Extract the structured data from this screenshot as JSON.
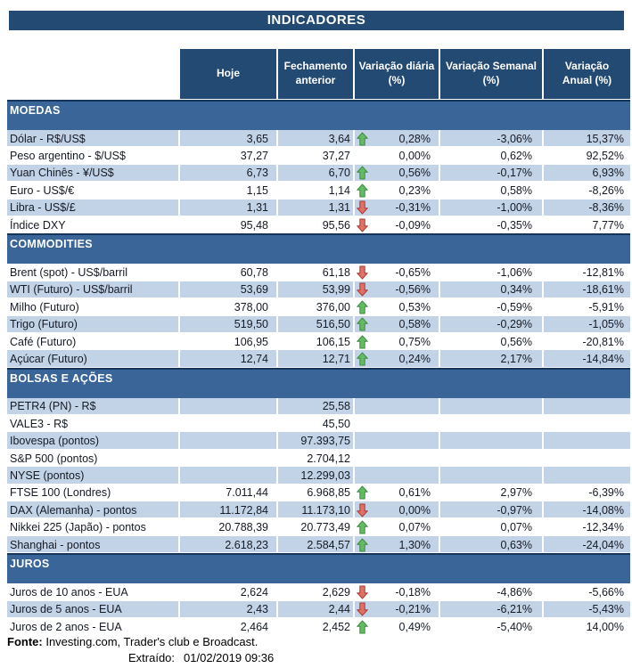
{
  "title": "INDICADORES",
  "columns": [
    "Hoje",
    "Fechamento\nanterior",
    "Variação diária\n(%)",
    "Variação Semanal\n(%)",
    "Variação\nAnual (%)"
  ],
  "colors": {
    "header_navy": "#234A72",
    "section_blue": "#3A6598",
    "section_top_border": "#16355A",
    "row_shaded": "#C3D3E7",
    "arrow_up_fill": "#63BB63",
    "arrow_up_border": "#3D8B3F",
    "arrow_down_fill": "#DF7165",
    "arrow_down_border": "#A63B32"
  },
  "sections": [
    {
      "name": "MOEDAS",
      "first_row_shaded": true,
      "rows": [
        {
          "label": "Dólar - R$/US$",
          "hoje": "3,65",
          "fechamento": "3,64",
          "arrow": "up",
          "diaria": "0,28%",
          "semanal": "-3,06%",
          "anual": "15,37%"
        },
        {
          "label": "Peso argentino - $/US$",
          "hoje": "37,27",
          "fechamento": "37,27",
          "arrow": "",
          "diaria": "0,00%",
          "semanal": "0,62%",
          "anual": "92,52%"
        },
        {
          "label": "Yuan Chinês - ¥/US$",
          "hoje": "6,73",
          "fechamento": "6,70",
          "arrow": "up",
          "diaria": "0,56%",
          "semanal": "-0,17%",
          "anual": "6,93%"
        },
        {
          "label": "Euro - US$/€",
          "hoje": "1,15",
          "fechamento": "1,14",
          "arrow": "up",
          "diaria": "0,23%",
          "semanal": "0,58%",
          "anual": "-8,26%"
        },
        {
          "label": "Libra - US$/£",
          "hoje": "1,31",
          "fechamento": "1,31",
          "arrow": "down",
          "diaria": "-0,31%",
          "semanal": "-1,00%",
          "anual": "-8,36%"
        },
        {
          "label": "Índice DXY",
          "hoje": "95,48",
          "fechamento": "95,56",
          "arrow": "down",
          "diaria": "-0,09%",
          "semanal": "-0,35%",
          "anual": "7,77%"
        }
      ]
    },
    {
      "name": "COMMODITIES",
      "first_row_shaded": false,
      "rows": [
        {
          "label": "Brent (spot) - US$/barril",
          "hoje": "60,78",
          "fechamento": "61,18",
          "arrow": "down",
          "diaria": "-0,65%",
          "semanal": "-1,06%",
          "anual": "-12,81%"
        },
        {
          "label": "WTI (Futuro) - US$/barril",
          "hoje": "53,69",
          "fechamento": "53,99",
          "arrow": "down",
          "diaria": "-0,56%",
          "semanal": "0,34%",
          "anual": "-18,61%"
        },
        {
          "label": "Milho (Futuro)",
          "hoje": "378,00",
          "fechamento": "376,00",
          "arrow": "up",
          "diaria": "0,53%",
          "semanal": "-0,59%",
          "anual": "-5,91%"
        },
        {
          "label": "Trigo (Futuro)",
          "hoje": "519,50",
          "fechamento": "516,50",
          "arrow": "up",
          "diaria": "0,58%",
          "semanal": "-0,29%",
          "anual": "-1,05%"
        },
        {
          "label": "Café (Futuro)",
          "hoje": "106,95",
          "fechamento": "106,15",
          "arrow": "up",
          "diaria": "0,75%",
          "semanal": "0,56%",
          "anual": "-20,81%"
        },
        {
          "label": "Açúcar (Futuro)",
          "hoje": "12,74",
          "fechamento": "12,71",
          "arrow": "up",
          "diaria": "0,24%",
          "semanal": "2,17%",
          "anual": "-14,84%"
        }
      ]
    },
    {
      "name": "BOLSAS E AÇÕES",
      "first_row_shaded": true,
      "rows": [
        {
          "label": "PETR4 (PN) - R$",
          "hoje": "",
          "fechamento": "25,58",
          "arrow": "",
          "diaria": "",
          "semanal": "",
          "anual": ""
        },
        {
          "label": "VALE3 - R$",
          "hoje": "",
          "fechamento": "45,50",
          "arrow": "",
          "diaria": "",
          "semanal": "",
          "anual": ""
        },
        {
          "label": "Ibovespa (pontos)",
          "hoje": "",
          "fechamento": "97.393,75",
          "arrow": "",
          "diaria": "",
          "semanal": "",
          "anual": ""
        },
        {
          "label": "S&P 500 (pontos)",
          "hoje": "",
          "fechamento": "2.704,12",
          "arrow": "",
          "diaria": "",
          "semanal": "",
          "anual": ""
        },
        {
          "label": "NYSE (pontos)",
          "hoje": "",
          "fechamento": "12.299,03",
          "arrow": "",
          "diaria": "",
          "semanal": "",
          "anual": ""
        },
        {
          "label": "FTSE 100 (Londres)",
          "hoje": "7.011,44",
          "fechamento": "6.968,85",
          "arrow": "up",
          "diaria": "0,61%",
          "semanal": "2,97%",
          "anual": "-6,39%"
        },
        {
          "label": "DAX (Alemanha) - pontos",
          "hoje": "11.172,84",
          "fechamento": "11.173,10",
          "arrow": "down",
          "diaria": "0,00%",
          "semanal": "-0,97%",
          "anual": "-14,08%"
        },
        {
          "label": "Nikkei 225 (Japão) - pontos",
          "hoje": "20.788,39",
          "fechamento": "20.773,49",
          "arrow": "up",
          "diaria": "0,07%",
          "semanal": "0,07%",
          "anual": "-12,34%"
        },
        {
          "label": "Shanghai - pontos",
          "hoje": "2.618,23",
          "fechamento": "2.584,57",
          "arrow": "up",
          "diaria": "1,30%",
          "semanal": "0,63%",
          "anual": "-24,04%"
        }
      ]
    },
    {
      "name": "JUROS",
      "first_row_shaded": false,
      "rows": [
        {
          "label": "Juros de 10 anos - EUA",
          "hoje": "2,624",
          "fechamento": "2,629",
          "arrow": "down",
          "diaria": "-0,18%",
          "semanal": "-4,86%",
          "anual": "-5,66%"
        },
        {
          "label": "Juros de 5 anos - EUA",
          "hoje": "2,43",
          "fechamento": "2,44",
          "arrow": "down",
          "diaria": "-0,21%",
          "semanal": "-6,21%",
          "anual": "-5,43%"
        },
        {
          "label": "Juros de 2 anos - EUA",
          "hoje": "2,464",
          "fechamento": "2,452",
          "arrow": "up",
          "diaria": "0,49%",
          "semanal": "-5,40%",
          "anual": "14,00%"
        }
      ]
    }
  ],
  "footer": {
    "fonte_label": "Fonte:",
    "fonte_text": " Investing.com, Trader's club e Broadcast.",
    "extraido_label": "Extraído:",
    "extraido_value": "01/02/2019 09:36"
  }
}
